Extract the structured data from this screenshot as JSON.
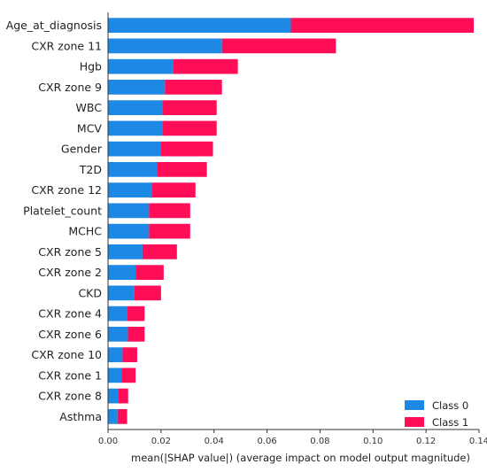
{
  "chart_data": {
    "type": "bar",
    "orientation": "horizontal",
    "stacked": true,
    "title": "",
    "xlabel": "mean(|SHAP value|) (average impact on model output magnitude)",
    "ylabel": "",
    "xlim": [
      0,
      0.14
    ],
    "x_ticks": [
      "0.00",
      "0.02",
      "0.04",
      "0.06",
      "0.08",
      "0.10",
      "0.12",
      "0.14"
    ],
    "grid": false,
    "legend_position": "bottom-right",
    "categories": [
      "Age_at_diagnosis",
      "CXR zone 11",
      "Hgb",
      "CXR zone 9",
      "WBC",
      "MCV",
      "Gender",
      "T2D",
      "CXR zone 12",
      "Platelet_count",
      "MCHC",
      "CXR zone 5",
      "CXR zone 2",
      "CKD",
      "CXR zone 4",
      "CXR zone 6",
      "CXR zone 10",
      "CXR zone 1",
      "CXR zone 8",
      "Asthma"
    ],
    "series": [
      {
        "name": "Class 0",
        "color": "#1e88e5",
        "values": [
          0.069,
          0.043,
          0.0245,
          0.0215,
          0.0205,
          0.0205,
          0.0198,
          0.0185,
          0.0165,
          0.0155,
          0.0155,
          0.013,
          0.0105,
          0.01,
          0.0072,
          0.0075,
          0.0055,
          0.0052,
          0.0038,
          0.0036
        ]
      },
      {
        "name": "Class 1",
        "color": "#ff0d57",
        "values": [
          0.069,
          0.043,
          0.0245,
          0.0215,
          0.0205,
          0.0205,
          0.0198,
          0.0188,
          0.0165,
          0.0155,
          0.0155,
          0.013,
          0.0105,
          0.01,
          0.0066,
          0.0063,
          0.0055,
          0.0052,
          0.0038,
          0.0036
        ]
      }
    ]
  }
}
